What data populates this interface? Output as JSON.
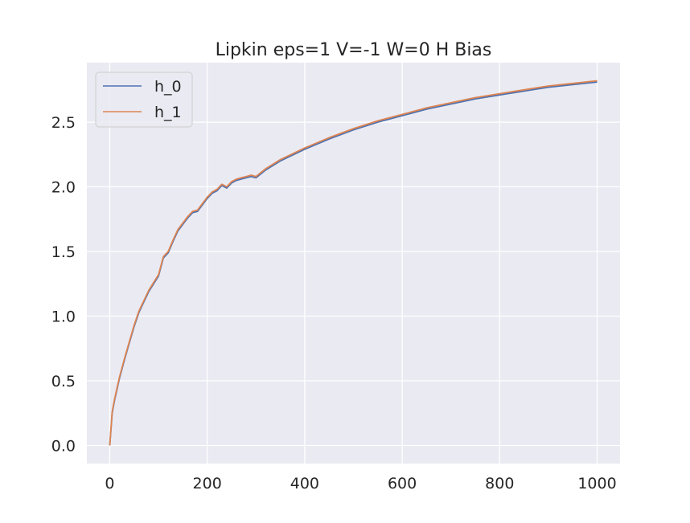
{
  "chart_data": {
    "type": "line",
    "title": "Lipkin eps=1 V=-1 W=0 H Bias",
    "xlabel": "",
    "ylabel": "",
    "xlim": [
      -47,
      1047
    ],
    "ylim": [
      -0.14,
      2.96
    ],
    "xticks": [
      0,
      200,
      400,
      600,
      800,
      1000
    ],
    "yticks": [
      0.0,
      0.5,
      1.0,
      1.5,
      2.0,
      2.5
    ],
    "xtick_labels": [
      "0",
      "200",
      "400",
      "600",
      "800",
      "1000"
    ],
    "ytick_labels": [
      "0.0",
      "0.5",
      "1.0",
      "1.5",
      "2.0",
      "2.5"
    ],
    "grid": true,
    "background": "#eaeaf2",
    "legend_position": "upper-left",
    "series": [
      {
        "name": "h_0",
        "color": "#4c72b0",
        "x": [
          0,
          5,
          10,
          20,
          30,
          40,
          50,
          60,
          70,
          80,
          90,
          100,
          110,
          120,
          130,
          140,
          150,
          160,
          170,
          180,
          190,
          200,
          210,
          220,
          230,
          240,
          250,
          260,
          270,
          280,
          290,
          300,
          320,
          350,
          400,
          450,
          500,
          550,
          600,
          650,
          700,
          750,
          800,
          850,
          900,
          950,
          1000
        ],
        "y": [
          0.0,
          0.25,
          0.35,
          0.52,
          0.66,
          0.79,
          0.92,
          1.03,
          1.11,
          1.19,
          1.25,
          1.31,
          1.45,
          1.49,
          1.58,
          1.66,
          1.71,
          1.76,
          1.8,
          1.81,
          1.86,
          1.91,
          1.95,
          1.97,
          2.01,
          1.99,
          2.03,
          2.05,
          2.06,
          2.07,
          2.08,
          2.07,
          2.13,
          2.2,
          2.29,
          2.37,
          2.44,
          2.5,
          2.55,
          2.6,
          2.64,
          2.68,
          2.71,
          2.74,
          2.77,
          2.79,
          2.81
        ]
      },
      {
        "name": "h_1",
        "color": "#dd8452",
        "x": [
          0,
          5,
          10,
          20,
          30,
          40,
          50,
          60,
          70,
          80,
          90,
          100,
          110,
          120,
          130,
          140,
          150,
          160,
          170,
          180,
          190,
          200,
          210,
          220,
          230,
          240,
          250,
          260,
          270,
          280,
          290,
          300,
          320,
          350,
          400,
          450,
          500,
          550,
          600,
          650,
          700,
          750,
          800,
          850,
          900,
          950,
          1000
        ],
        "y": [
          0.0,
          0.26,
          0.36,
          0.53,
          0.67,
          0.8,
          0.93,
          1.04,
          1.12,
          1.2,
          1.26,
          1.32,
          1.46,
          1.5,
          1.59,
          1.67,
          1.72,
          1.77,
          1.81,
          1.82,
          1.87,
          1.92,
          1.96,
          1.98,
          2.02,
          2.0,
          2.04,
          2.06,
          2.07,
          2.08,
          2.09,
          2.08,
          2.14,
          2.21,
          2.3,
          2.38,
          2.45,
          2.51,
          2.56,
          2.61,
          2.65,
          2.69,
          2.72,
          2.75,
          2.78,
          2.8,
          2.82
        ]
      }
    ]
  }
}
